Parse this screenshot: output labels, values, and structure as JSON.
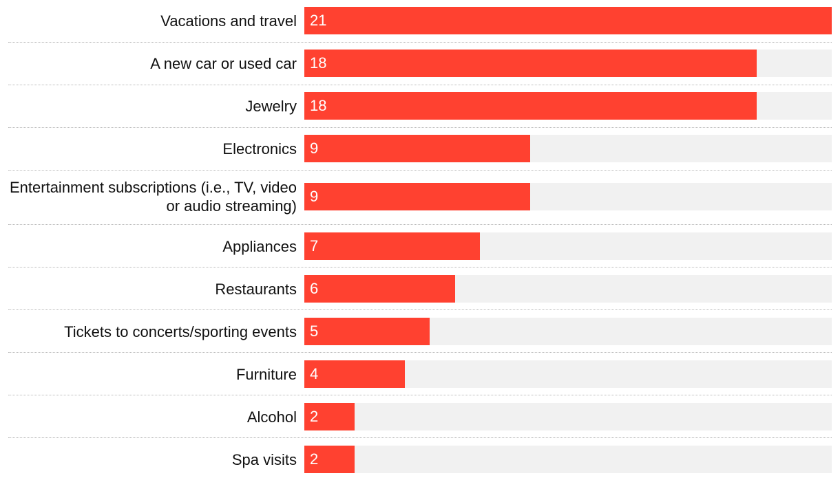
{
  "chart_data": {
    "type": "bar",
    "orientation": "horizontal",
    "categories": [
      "Vacations and travel",
      "A new car or used car",
      "Jewelry",
      "Electronics",
      "Entertainment subscriptions (i.e., TV, video or audio streaming)",
      "Appliances",
      "Restaurants",
      "Tickets to concerts/sporting events",
      "Furniture",
      "Alcohol",
      "Spa visits"
    ],
    "values": [
      21,
      18,
      18,
      9,
      9,
      7,
      6,
      5,
      4,
      2,
      2
    ],
    "xlim": [
      0,
      21
    ],
    "grid": false,
    "legend": "none",
    "colors": {
      "bar": "#ff4130",
      "track": "#f1f1f1",
      "value_text": "#ffffff",
      "label_text": "#111111"
    }
  }
}
